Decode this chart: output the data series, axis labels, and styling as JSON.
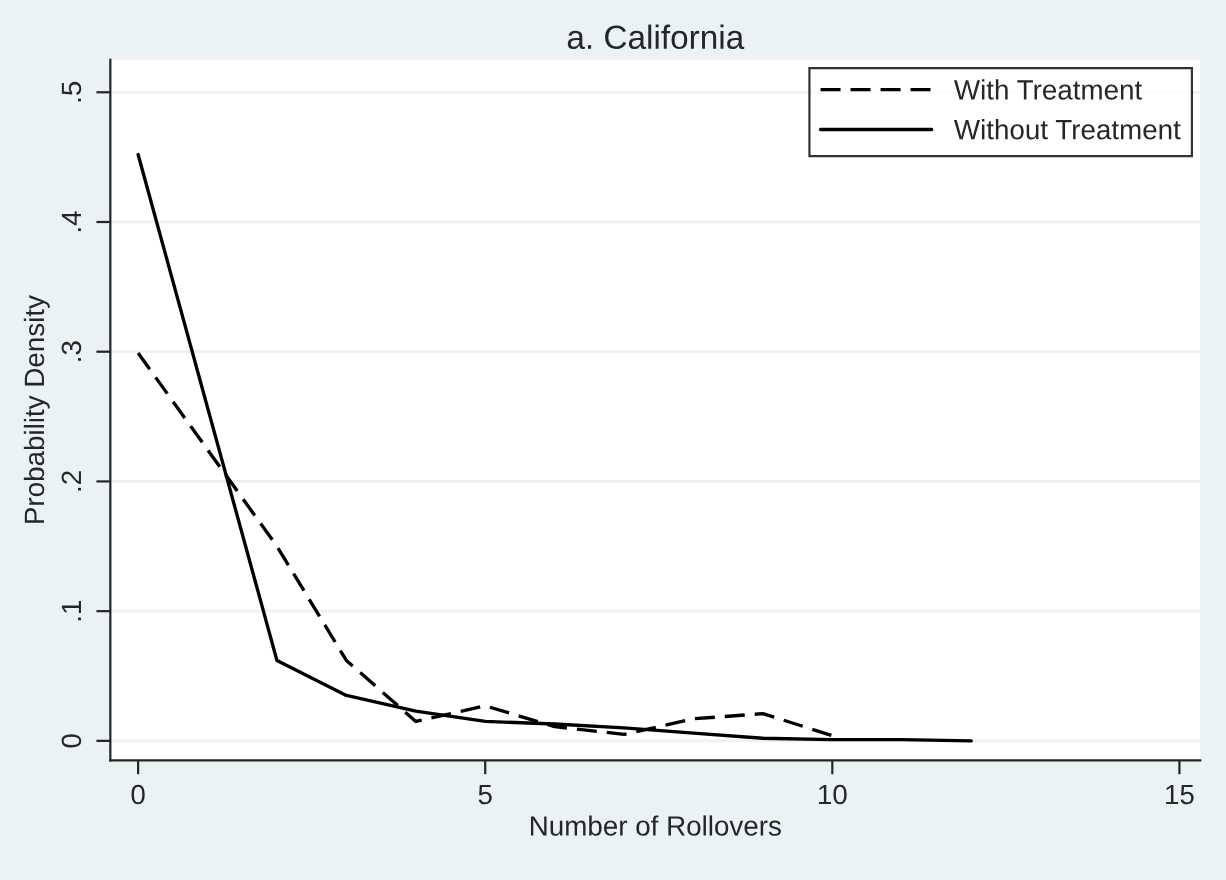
{
  "chart_data": {
    "type": "line",
    "title": "a. California",
    "xlabel": "Number of Rollovers",
    "ylabel": "Probability Density",
    "xlim": [
      -0.4,
      15.3
    ],
    "xticks": [
      0,
      5,
      10,
      15
    ],
    "ylim": [
      -0.015,
      0.525
    ],
    "yticks": [
      0,
      {
        "value": 0.1,
        "label": ".1"
      },
      {
        "value": 0.2,
        "label": ".2"
      },
      {
        "value": 0.3,
        "label": ".3"
      },
      {
        "value": 0.4,
        "label": ".4"
      },
      {
        "value": 0.5,
        "label": ".5"
      }
    ],
    "grid": "y",
    "legend": "top right",
    "series": [
      {
        "name": "With Treatment",
        "color": "#000000",
        "line_style": "dashed",
        "x": [
          0,
          2,
          3,
          4,
          5,
          6,
          7,
          8,
          9,
          10
        ],
        "values": [
          0.299,
          0.15,
          0.062,
          0.015,
          0.027,
          0.011,
          0.005,
          0.017,
          0.021,
          0.004
        ]
      },
      {
        "name": "Without Treatment",
        "color": "#000000",
        "line_style": "solid",
        "x": [
          0,
          2,
          3,
          4,
          5,
          6,
          7,
          8,
          9,
          10,
          11,
          12
        ],
        "values": [
          0.452,
          0.062,
          0.035,
          0.023,
          0.015,
          0.013,
          0.01,
          0.006,
          0.002,
          0.001,
          0.001,
          0.0
        ]
      }
    ]
  }
}
